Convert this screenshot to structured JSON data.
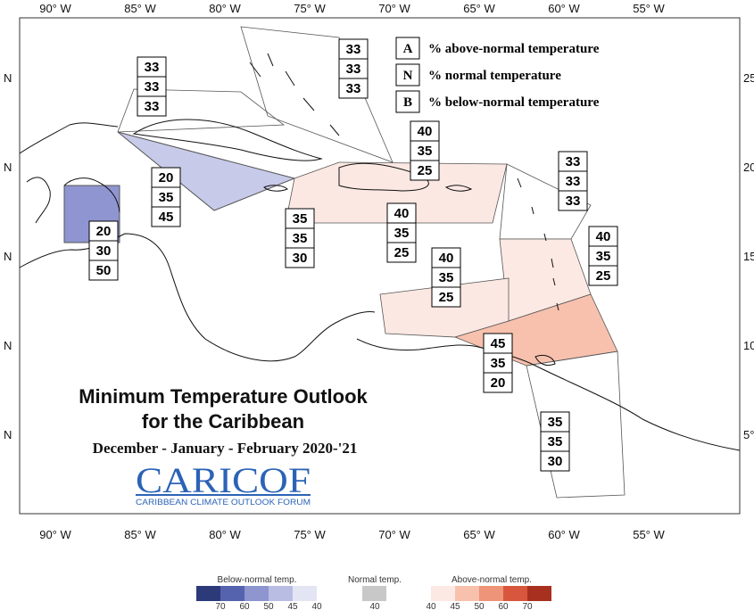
{
  "map": {
    "title_line1": "Minimum Temperature Outlook",
    "title_line2": "for the Caribbean",
    "subtitle": "December - January - February 2020-'21",
    "logo_text": "CARICOF",
    "logo_tagline": "CARIBBEAN CLIMATE OUTLOOK FORUM",
    "lon_labels_top": [
      "90° W",
      "85° W",
      "80° W",
      "75° W",
      "70° W",
      "65° W",
      "60° W",
      "55° W"
    ],
    "lon_labels_bottom": [
      "90° W",
      "85° W",
      "80° W",
      "75° W",
      "70° W",
      "65° W",
      "60° W",
      "55° W"
    ],
    "lat_labels_left": [
      "N",
      "N",
      "N",
      "N",
      "N"
    ],
    "lat_labels_right": [
      "25",
      "20",
      "15",
      "10",
      "5°"
    ]
  },
  "key": [
    {
      "letter": "A",
      "text": "% above-normal temperature"
    },
    {
      "letter": "N",
      "text": "% normal temperature"
    },
    {
      "letter": "B",
      "text": "% below-normal temperature"
    }
  ],
  "regions": [
    {
      "name": "bahamas",
      "values": [
        "33",
        "33",
        "33"
      ],
      "color": "#ffffff"
    },
    {
      "name": "gulf-west",
      "values": [
        "33",
        "33",
        "33"
      ],
      "color": "#ffffff"
    },
    {
      "name": "cuba",
      "values": [
        "20",
        "35",
        "45"
      ],
      "color": "#c7cae8"
    },
    {
      "name": "belize",
      "values": [
        "20",
        "30",
        "50"
      ],
      "color": "#8f95d0"
    },
    {
      "name": "jamaica",
      "values": [
        "35",
        "35",
        "30"
      ],
      "color": "#ffffff"
    },
    {
      "name": "turks-caicos",
      "values": [
        "40",
        "35",
        "25"
      ],
      "color": "#fbe8e2"
    },
    {
      "name": "hispaniola",
      "values": [
        "40",
        "35",
        "25"
      ],
      "color": "#fbe8e2"
    },
    {
      "name": "virgin-islands",
      "values": [
        "33",
        "33",
        "33"
      ],
      "color": "#ffffff"
    },
    {
      "name": "leeward",
      "values": [
        "40",
        "35",
        "25"
      ],
      "color": "#fde9e3"
    },
    {
      "name": "aruba-curacao",
      "values": [
        "40",
        "35",
        "25"
      ],
      "color": "#fbe8e2"
    },
    {
      "name": "trinidad-windward",
      "values": [
        "45",
        "35",
        "20"
      ],
      "color": "#f7c1ae"
    },
    {
      "name": "guianas",
      "values": [
        "35",
        "35",
        "30"
      ],
      "color": "#ffffff"
    }
  ],
  "colorbar": {
    "below_title": "Below-normal temp.",
    "normal_title": "Normal temp.",
    "above_title": "Above-normal temp.",
    "below_ticks": [
      "70",
      "60",
      "50",
      "45",
      "40"
    ],
    "normal_ticks": [
      "40"
    ],
    "above_ticks": [
      "40",
      "45",
      "50",
      "60",
      "70"
    ],
    "below_colors": [
      "#2d3a7a",
      "#5563ae",
      "#8e95cf",
      "#b9bde3",
      "#e4e5f4"
    ],
    "normal_color": "#c8c8c8",
    "above_colors": [
      "#fde9e3",
      "#f7c1ae",
      "#ee9478",
      "#d8573c",
      "#a8301f"
    ]
  }
}
